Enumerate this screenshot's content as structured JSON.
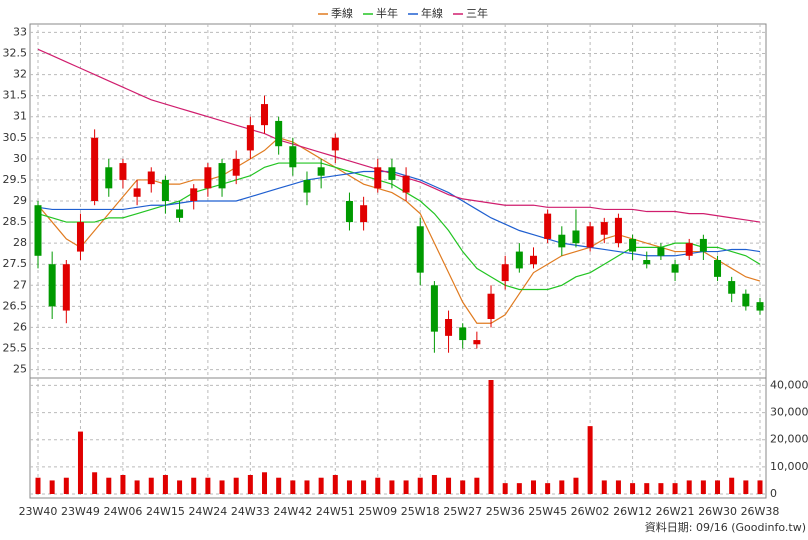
{
  "chart_data": {
    "type": "candlestick",
    "grid": true,
    "legend_position": "top",
    "footnote": "資料日期: 09/16 (Goodinfo.tw)",
    "categories": [
      "23W40",
      null,
      null,
      "23W49",
      null,
      null,
      "24W06",
      null,
      null,
      "24W15",
      null,
      null,
      "24W24",
      null,
      null,
      "24W33",
      null,
      null,
      "24W42",
      null,
      null,
      "24W51",
      null,
      null,
      "25W09",
      null,
      null,
      "25W18",
      null,
      null,
      "25W27",
      null,
      null,
      "25W36",
      null,
      null,
      "25W45",
      null,
      null,
      "26W02",
      null,
      null,
      "26W12",
      null,
      null,
      "26W21",
      null,
      null,
      "26W30",
      null,
      null,
      "26W38"
    ],
    "ylim": [
      24.8,
      33.2
    ],
    "yticks": [
      25,
      25.5,
      26,
      26.5,
      27,
      27.5,
      28,
      28.5,
      29,
      29.5,
      30,
      30.5,
      31,
      31.5,
      32,
      32.5,
      33
    ],
    "candles": {
      "up_color": "#e00000",
      "down_color": "#009a00",
      "open": [
        28.9,
        27.5,
        26.4,
        27.8,
        29.0,
        29.8,
        29.5,
        29.1,
        29.4,
        29.5,
        28.8,
        29.0,
        29.3,
        29.9,
        29.6,
        30.2,
        30.8,
        30.9,
        30.3,
        29.5,
        29.8,
        30.2,
        29.0,
        28.5,
        29.3,
        29.8,
        29.2,
        28.4,
        27.0,
        25.8,
        26.0,
        25.6,
        26.2,
        27.1,
        27.8,
        27.5,
        28.1,
        28.2,
        28.3,
        27.9,
        28.2,
        28.0,
        28.1,
        27.6,
        27.9,
        27.5,
        27.7,
        28.1,
        27.6,
        27.1,
        26.8,
        26.6
      ],
      "high": [
        29.0,
        27.8,
        27.6,
        28.7,
        30.7,
        30.0,
        30.0,
        29.5,
        29.8,
        29.6,
        29.0,
        29.4,
        29.9,
        30.0,
        30.2,
        31.0,
        31.5,
        31.0,
        30.5,
        29.7,
        30.0,
        30.6,
        29.2,
        29.1,
        30.0,
        30.0,
        29.8,
        28.6,
        27.1,
        26.4,
        26.1,
        25.9,
        27.0,
        27.7,
        28.0,
        27.9,
        28.8,
        28.4,
        28.8,
        28.5,
        28.6,
        28.7,
        28.2,
        27.8,
        28.0,
        27.6,
        28.1,
        28.2,
        27.7,
        27.2,
        26.9,
        26.7
      ],
      "low": [
        27.4,
        26.2,
        26.1,
        27.6,
        28.9,
        29.1,
        29.3,
        28.9,
        29.2,
        28.7,
        28.5,
        28.8,
        29.1,
        29.1,
        29.4,
        30.0,
        30.6,
        30.1,
        29.6,
        28.9,
        29.3,
        29.9,
        28.3,
        28.3,
        29.2,
        29.3,
        29.0,
        27.0,
        25.4,
        25.4,
        25.5,
        25.5,
        26.0,
        26.9,
        27.3,
        27.4,
        28.0,
        27.7,
        27.9,
        27.8,
        28.0,
        27.9,
        27.6,
        27.4,
        27.6,
        27.1,
        27.6,
        27.6,
        27.1,
        26.6,
        26.4,
        26.3
      ],
      "close": [
        27.7,
        26.5,
        27.5,
        28.5,
        30.5,
        29.3,
        29.9,
        29.3,
        29.7,
        29.0,
        28.6,
        29.3,
        29.8,
        29.3,
        30.0,
        30.8,
        31.3,
        30.3,
        29.8,
        29.2,
        29.6,
        30.5,
        28.5,
        28.9,
        29.8,
        29.5,
        29.6,
        27.3,
        25.9,
        26.2,
        25.7,
        25.7,
        26.8,
        27.5,
        27.4,
        27.7,
        28.7,
        27.9,
        28.0,
        28.4,
        28.5,
        28.6,
        27.8,
        27.5,
        27.7,
        27.3,
        28.0,
        27.8,
        27.2,
        26.8,
        26.5,
        26.4
      ]
    },
    "series": [
      {
        "name": "季線",
        "color": "#e07b20",
        "values": [
          28.9,
          28.5,
          28.1,
          27.9,
          28.3,
          28.7,
          29.1,
          29.5,
          29.5,
          29.4,
          29.4,
          29.5,
          29.5,
          29.6,
          29.8,
          30.0,
          30.2,
          30.5,
          30.4,
          30.2,
          30.0,
          29.8,
          29.6,
          29.4,
          29.3,
          29.2,
          29.0,
          28.7,
          28.0,
          27.3,
          26.6,
          26.1,
          26.1,
          26.3,
          26.8,
          27.3,
          27.5,
          27.7,
          27.8,
          27.9,
          28.1,
          28.2,
          28.1,
          28.0,
          27.9,
          27.8,
          27.8,
          27.8,
          27.6,
          27.4,
          27.2,
          27.1
        ]
      },
      {
        "name": "半年",
        "color": "#22c422",
        "values": [
          28.7,
          28.6,
          28.5,
          28.5,
          28.5,
          28.6,
          28.6,
          28.7,
          28.8,
          28.9,
          29.0,
          29.2,
          29.3,
          29.4,
          29.5,
          29.6,
          29.8,
          29.9,
          29.9,
          29.9,
          29.9,
          29.8,
          29.7,
          29.6,
          29.5,
          29.4,
          29.2,
          29.0,
          28.7,
          28.3,
          27.8,
          27.4,
          27.2,
          27.0,
          26.9,
          26.9,
          26.9,
          27.0,
          27.2,
          27.3,
          27.5,
          27.7,
          27.9,
          27.9,
          27.9,
          28.0,
          28.0,
          27.9,
          27.9,
          27.8,
          27.7,
          27.5
        ]
      },
      {
        "name": "年線",
        "color": "#1f5fd0",
        "values": [
          28.85,
          28.8,
          28.8,
          28.8,
          28.8,
          28.8,
          28.8,
          28.85,
          28.9,
          28.9,
          28.95,
          29.0,
          29.0,
          29.0,
          29.0,
          29.1,
          29.2,
          29.3,
          29.4,
          29.5,
          29.55,
          29.6,
          29.65,
          29.7,
          29.7,
          29.7,
          29.6,
          29.5,
          29.35,
          29.2,
          29.0,
          28.8,
          28.6,
          28.45,
          28.3,
          28.2,
          28.1,
          28.0,
          27.95,
          27.9,
          27.85,
          27.8,
          27.75,
          27.7,
          27.7,
          27.7,
          27.75,
          27.8,
          27.8,
          27.85,
          27.85,
          27.8
        ]
      },
      {
        "name": "三年",
        "color": "#d01e6e",
        "values": [
          32.6,
          32.45,
          32.3,
          32.15,
          32.0,
          31.85,
          31.7,
          31.55,
          31.4,
          31.3,
          31.2,
          31.1,
          31.0,
          30.9,
          30.8,
          30.7,
          30.6,
          30.45,
          30.35,
          30.25,
          30.15,
          30.05,
          29.95,
          29.85,
          29.75,
          29.65,
          29.55,
          29.45,
          29.3,
          29.15,
          29.05,
          29.0,
          28.95,
          28.9,
          28.9,
          28.9,
          28.85,
          28.85,
          28.85,
          28.85,
          28.8,
          28.8,
          28.8,
          28.75,
          28.75,
          28.75,
          28.7,
          28.7,
          28.65,
          28.6,
          28.55,
          28.5
        ]
      }
    ],
    "volume": {
      "color": "#e00000",
      "ylim": [
        0,
        42000
      ],
      "yticks": [
        0,
        {
          "value": 10000,
          "label": "10,000"
        },
        {
          "value": 20000,
          "label": "20,000"
        },
        {
          "value": 30000,
          "label": "30,000"
        },
        {
          "value": 40000,
          "label": "40,000"
        }
      ],
      "values": [
        6000,
        5000,
        6000,
        23000,
        8000,
        6000,
        7000,
        5000,
        6000,
        7000,
        5000,
        6000,
        6000,
        5000,
        6000,
        7000,
        8000,
        6000,
        5000,
        5000,
        6000,
        7000,
        5000,
        5000,
        6000,
        5000,
        5000,
        6000,
        7000,
        6000,
        5000,
        6000,
        42000,
        4000,
        4000,
        5000,
        4000,
        5000,
        6000,
        25000,
        5000,
        5000,
        4000,
        4000,
        4000,
        4000,
        5000,
        5000,
        5000,
        6000,
        5000,
        5000
      ]
    }
  }
}
